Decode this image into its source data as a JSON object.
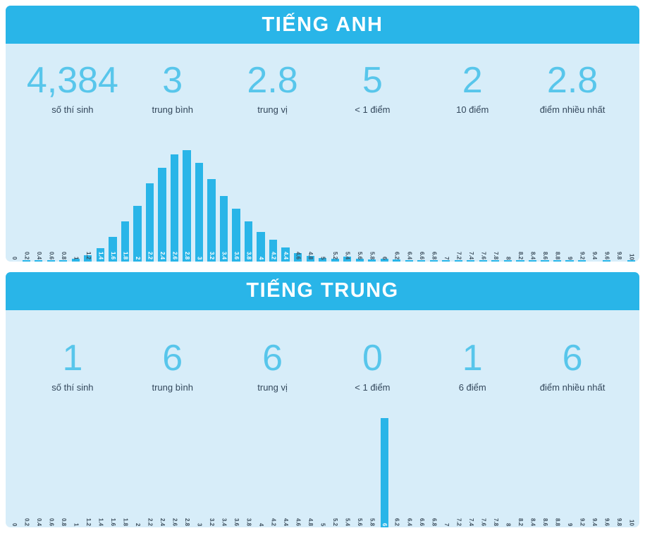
{
  "colors": {
    "accent": "#29b5e8",
    "panel_bg": "#d7edf9",
    "number": "#58c6eb",
    "label_text": "#33475b"
  },
  "panels": [
    {
      "title": "TIẾNG ANH",
      "stats": [
        {
          "value": "4,384",
          "label": "số thí sinh"
        },
        {
          "value": "3",
          "label": "trung bình"
        },
        {
          "value": "2.8",
          "label": "trung vị"
        },
        {
          "value": "5",
          "label": "< 1 điểm"
        },
        {
          "value": "2",
          "label": "10 điểm"
        },
        {
          "value": "2.8",
          "label": "điểm nhiều nhất"
        }
      ]
    },
    {
      "title": "TIẾNG TRUNG",
      "stats": [
        {
          "value": "1",
          "label": "số thí sinh"
        },
        {
          "value": "6",
          "label": "trung bình"
        },
        {
          "value": "6",
          "label": "trung vị"
        },
        {
          "value": "0",
          "label": "< 1 điểm"
        },
        {
          "value": "1",
          "label": "6 điểm"
        },
        {
          "value": "6",
          "label": "điểm nhiều nhất"
        }
      ]
    }
  ],
  "chart_data": [
    {
      "type": "bar",
      "title": "TIẾNG ANH",
      "xlabel": "",
      "ylabel": "",
      "xlim": [
        0,
        10
      ],
      "bin_width": 0.2,
      "ylim": [
        0,
        500
      ],
      "grid": false,
      "legend": false,
      "categories": [
        "0",
        "0.2",
        "0.4",
        "0.6",
        "0.8",
        "1",
        "1.2",
        "1.4",
        "1.6",
        "1.8",
        "2",
        "2.2",
        "2.4",
        "2.6",
        "2.8",
        "3",
        "3.2",
        "3.4",
        "3.6",
        "3.8",
        "4",
        "4.2",
        "4.4",
        "4.6",
        "4.8",
        "5",
        "5.2",
        "5.4",
        "5.6",
        "5.8",
        "6",
        "6.2",
        "6.4",
        "6.6",
        "6.8",
        "7",
        "7.2",
        "7.4",
        "7.6",
        "7.8",
        "8",
        "8.2",
        "8.4",
        "8.6",
        "8.8",
        "9",
        "9.2",
        "9.4",
        "9.6",
        "9.8",
        "10"
      ],
      "values": [
        0,
        1,
        1,
        1,
        2,
        10,
        26,
        60,
        110,
        180,
        250,
        350,
        420,
        480,
        500,
        440,
        370,
        294,
        235,
        180,
        130,
        95,
        62,
        38,
        25,
        15,
        12,
        20,
        10,
        8,
        10,
        8,
        5,
        5,
        4,
        5,
        3,
        3,
        2,
        2,
        2,
        1,
        2,
        1,
        1,
        1,
        1,
        0,
        1,
        0,
        2
      ]
    },
    {
      "type": "bar",
      "title": "TIẾNG TRUNG",
      "xlabel": "",
      "ylabel": "",
      "xlim": [
        0,
        10
      ],
      "bin_width": 0.2,
      "ylim": [
        0,
        1
      ],
      "grid": false,
      "legend": false,
      "categories": [
        "0",
        "0.2",
        "0.4",
        "0.6",
        "0.8",
        "1",
        "1.2",
        "1.4",
        "1.6",
        "1.8",
        "2",
        "2.2",
        "2.4",
        "2.6",
        "2.8",
        "3",
        "3.2",
        "3.4",
        "3.6",
        "3.8",
        "4",
        "4.2",
        "4.4",
        "4.6",
        "4.8",
        "5",
        "5.2",
        "5.4",
        "5.6",
        "5.8",
        "6",
        "6.2",
        "6.4",
        "6.6",
        "6.8",
        "7",
        "7.2",
        "7.4",
        "7.6",
        "7.8",
        "8",
        "8.2",
        "8.4",
        "8.6",
        "8.8",
        "9",
        "9.2",
        "9.4",
        "9.6",
        "9.8",
        "10"
      ],
      "values": [
        0,
        0,
        0,
        0,
        0,
        0,
        0,
        0,
        0,
        0,
        0,
        0,
        0,
        0,
        0,
        0,
        0,
        0,
        0,
        0,
        0,
        0,
        0,
        0,
        0,
        0,
        0,
        0,
        0,
        0,
        1,
        0,
        0,
        0,
        0,
        0,
        0,
        0,
        0,
        0,
        0,
        0,
        0,
        0,
        0,
        0,
        0,
        0,
        0,
        0,
        0
      ]
    }
  ]
}
